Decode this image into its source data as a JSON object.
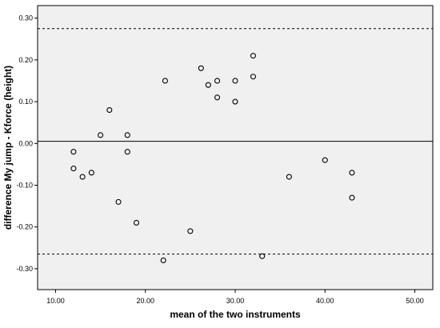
{
  "chart_data": {
    "type": "scatter",
    "title": "",
    "xlabel": "mean of the two instruments",
    "ylabel": "difference My jump - Kforce (height)",
    "xlim": [
      8.0,
      52.0
    ],
    "ylim": [
      -0.35,
      0.33
    ],
    "xticks": [
      10,
      20,
      30,
      40,
      50
    ],
    "xtick_labels": [
      "10.00",
      "20.00",
      "30.00",
      "40.00",
      "50.00"
    ],
    "yticks": [
      -0.3,
      -0.2,
      -0.1,
      0.0,
      0.1,
      0.2,
      0.3
    ],
    "ytick_labels": [
      "-0.30",
      "-0.20",
      "-0.10",
      "0.00",
      "0.10",
      "0.20",
      "0.30"
    ],
    "grid": false,
    "legend": "none",
    "reference_lines": [
      {
        "y": 0.005,
        "style": "solid"
      },
      {
        "y": 0.275,
        "style": "dashed"
      },
      {
        "y": -0.265,
        "style": "dashed"
      }
    ],
    "series": [
      {
        "points": [
          {
            "x": 12.0,
            "y": -0.02
          },
          {
            "x": 12.0,
            "y": -0.06
          },
          {
            "x": 13.0,
            "y": -0.08
          },
          {
            "x": 14.0,
            "y": -0.07
          },
          {
            "x": 15.0,
            "y": 0.02
          },
          {
            "x": 16.0,
            "y": 0.08
          },
          {
            "x": 17.0,
            "y": -0.14
          },
          {
            "x": 18.0,
            "y": 0.02
          },
          {
            "x": 18.0,
            "y": -0.02
          },
          {
            "x": 19.0,
            "y": -0.19
          },
          {
            "x": 22.0,
            "y": -0.28
          },
          {
            "x": 22.2,
            "y": 0.15
          },
          {
            "x": 25.0,
            "y": -0.21
          },
          {
            "x": 26.2,
            "y": 0.18
          },
          {
            "x": 27.0,
            "y": 0.14
          },
          {
            "x": 28.0,
            "y": 0.15
          },
          {
            "x": 28.0,
            "y": 0.11
          },
          {
            "x": 30.0,
            "y": 0.15
          },
          {
            "x": 30.0,
            "y": 0.1
          },
          {
            "x": 32.0,
            "y": 0.21
          },
          {
            "x": 32.0,
            "y": 0.16
          },
          {
            "x": 33.0,
            "y": -0.27
          },
          {
            "x": 36.0,
            "y": -0.08
          },
          {
            "x": 40.0,
            "y": -0.04
          },
          {
            "x": 43.0,
            "y": -0.07
          },
          {
            "x": 43.0,
            "y": -0.13
          }
        ]
      }
    ],
    "colors": {
      "plot_background": "#f0f0f0",
      "marker_stroke": "#000000",
      "line": "#000000"
    }
  }
}
